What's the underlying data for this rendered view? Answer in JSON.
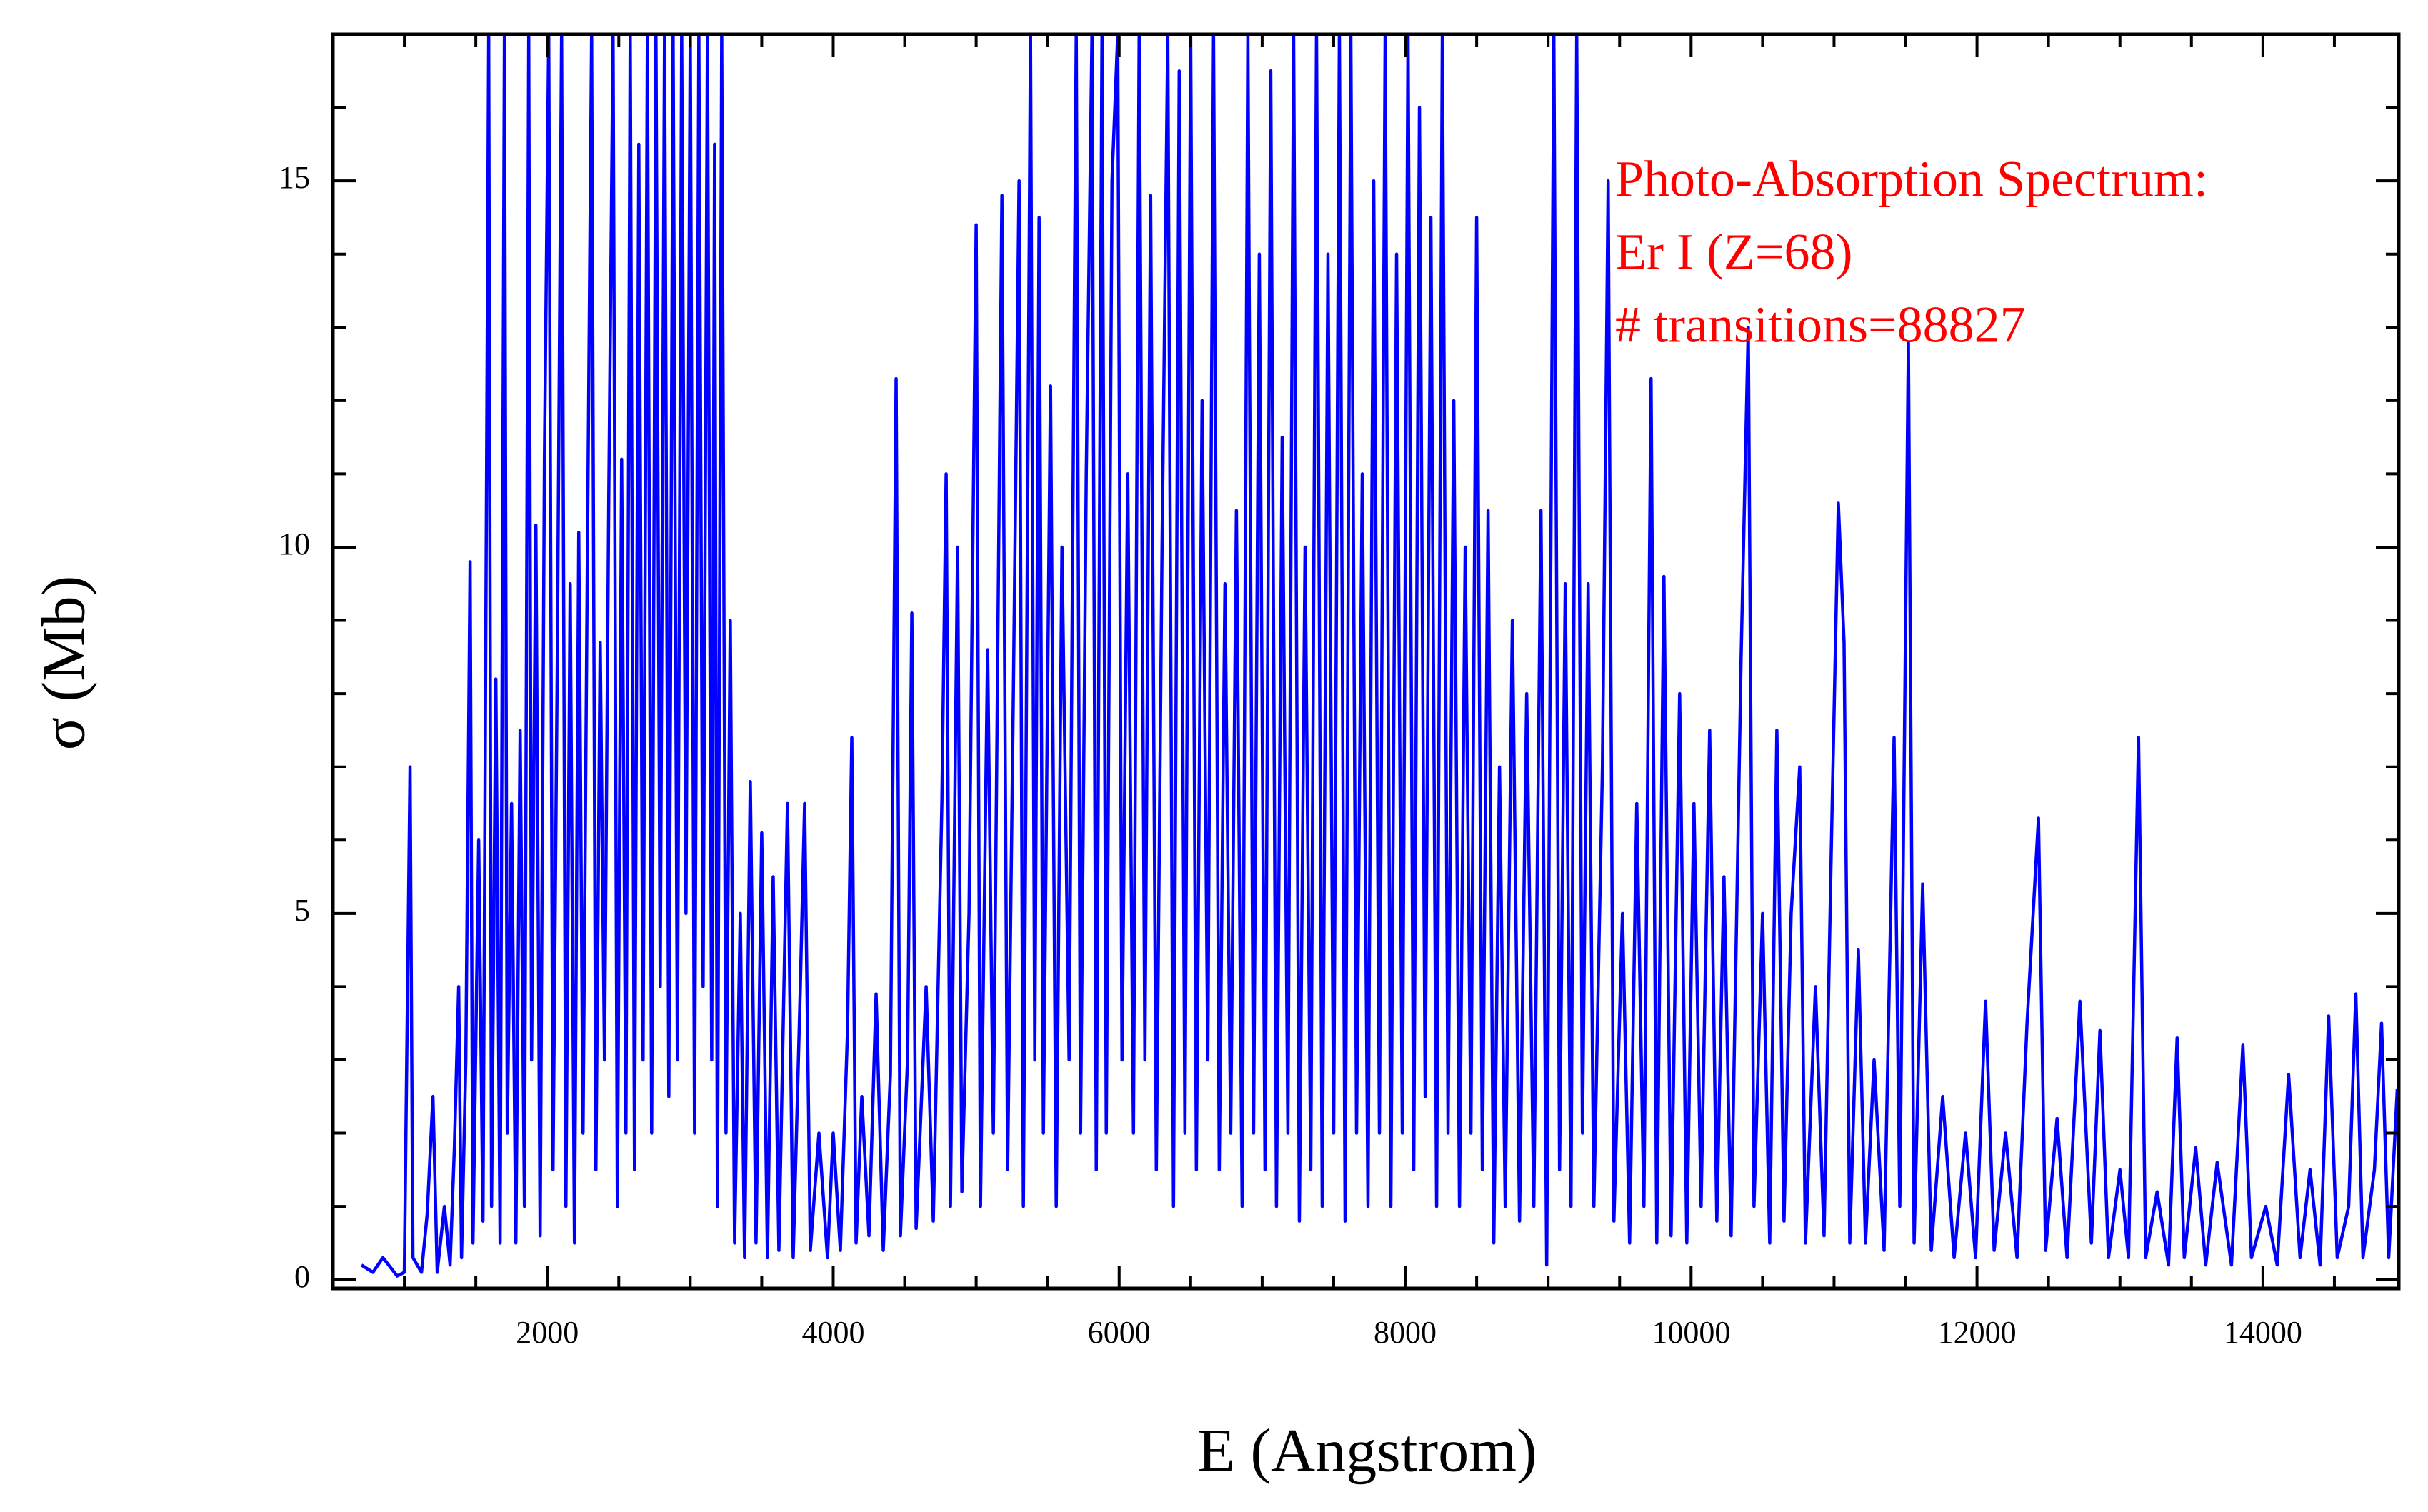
{
  "chart_data": {
    "type": "line",
    "xlabel": "E (Angstrom)",
    "ylabel": "σ (Mb)",
    "annotations": [
      "Photo-Absorption Spectrum:",
      "Er I (Z=68)",
      "# transitions=88827"
    ],
    "annotation_color": "#ff0000",
    "xlim": [
      500,
      14950
    ],
    "ylim": [
      -0.12,
      17
    ],
    "xticks": [
      2000,
      4000,
      6000,
      8000,
      10000,
      12000,
      14000
    ],
    "yticks": [
      0,
      5,
      10,
      15
    ],
    "xminorticks": [
      1000,
      1500,
      2500,
      3000,
      3500,
      4500,
      5000,
      5500,
      6500,
      7000,
      7500,
      8500,
      9000,
      9500,
      10500,
      11000,
      11500,
      12500,
      13000,
      13500,
      14500
    ],
    "yminorticks": [
      1,
      2,
      3,
      4,
      6,
      7,
      8,
      9,
      11,
      12,
      13,
      14,
      16
    ],
    "x": [
      700,
      780,
      850,
      950,
      1000,
      1040,
      1060,
      1120,
      1160,
      1200,
      1230,
      1280,
      1320,
      1350,
      1380,
      1400,
      1430,
      1460,
      1480,
      1520,
      1550,
      1590,
      1610,
      1640,
      1670,
      1700,
      1720,
      1750,
      1780,
      1810,
      1840,
      1870,
      1890,
      1920,
      1950,
      1980,
      2010,
      2040,
      2070,
      2100,
      2130,
      2160,
      2190,
      2220,
      2250,
      2280,
      2310,
      2340,
      2370,
      2400,
      2430,
      2460,
      2490,
      2520,
      2550,
      2580,
      2610,
      2640,
      2670,
      2700,
      2730,
      2760,
      2790,
      2820,
      2850,
      2880,
      2910,
      2940,
      2970,
      3000,
      3030,
      3060,
      3090,
      3120,
      3150,
      3170,
      3190,
      3220,
      3250,
      3280,
      3310,
      3350,
      3380,
      3420,
      3460,
      3500,
      3540,
      3580,
      3620,
      3680,
      3720,
      3770,
      3800,
      3840,
      3900,
      3960,
      4000,
      4050,
      4100,
      4130,
      4160,
      4200,
      4250,
      4300,
      4350,
      4400,
      4440,
      4470,
      4520,
      4550,
      4580,
      4650,
      4700,
      4760,
      4790,
      4820,
      4870,
      4900,
      4950,
      5000,
      5030,
      5080,
      5120,
      5180,
      5220,
      5260,
      5300,
      5330,
      5380,
      5410,
      5440,
      5470,
      5520,
      5560,
      5600,
      5650,
      5700,
      5730,
      5770,
      5810,
      5840,
      5880,
      5910,
      5950,
      5990,
      6020,
      6060,
      6100,
      6140,
      6180,
      6220,
      6260,
      6300,
      6340,
      6380,
      6420,
      6460,
      6500,
      6540,
      6580,
      6620,
      6660,
      6700,
      6740,
      6780,
      6820,
      6860,
      6900,
      6940,
      6980,
      7020,
      7060,
      7100,
      7140,
      7180,
      7220,
      7260,
      7300,
      7340,
      7380,
      7420,
      7460,
      7500,
      7540,
      7580,
      7620,
      7660,
      7700,
      7740,
      7780,
      7820,
      7860,
      7900,
      7940,
      7980,
      8020,
      8060,
      8100,
      8140,
      8180,
      8220,
      8260,
      8300,
      8340,
      8380,
      8420,
      8460,
      8500,
      8540,
      8580,
      8620,
      8660,
      8700,
      8750,
      8800,
      8850,
      8900,
      8950,
      8990,
      9040,
      9080,
      9120,
      9160,
      9200,
      9240,
      9280,
      9320,
      9380,
      9420,
      9460,
      9520,
      9570,
      9620,
      9670,
      9720,
      9760,
      9810,
      9860,
      9920,
      9970,
      10020,
      10070,
      10130,
      10180,
      10230,
      10280,
      10350,
      10400,
      10440,
      10500,
      10550,
      10600,
      10650,
      10700,
      10760,
      10800,
      10870,
      10930,
      10980,
      11030,
      11070,
      11110,
      11170,
      11220,
      11280,
      11350,
      11420,
      11460,
      11520,
      11560,
      11620,
      11680,
      11760,
      11840,
      11920,
      11990,
      12060,
      12120,
      12200,
      12280,
      12350,
      12430,
      12480,
      12560,
      12630,
      12720,
      12800,
      12860,
      12920,
      13000,
      13060,
      13130,
      13180,
      13260,
      13340,
      13400,
      13450,
      13530,
      13600,
      13680,
      13780,
      13860,
      13920,
      14020,
      14100,
      14180,
      14260,
      14330,
      14400,
      14460,
      14520,
      14600,
      14650,
      14700,
      14780,
      14830,
      14880,
      14940
    ],
    "series": [
      {
        "color": "#0000ff",
        "values": [
          0.2,
          0.1,
          0.3,
          0.05,
          0.1,
          7.0,
          0.3,
          0.1,
          0.9,
          2.5,
          0.1,
          1.0,
          0.2,
          1.8,
          4.0,
          0.3,
          3.0,
          9.8,
          0.5,
          6.0,
          0.8,
          17,
          1.0,
          8.2,
          0.5,
          17,
          2.0,
          6.5,
          0.5,
          7.5,
          1.0,
          17,
          3.0,
          10.3,
          0.6,
          11.2,
          17,
          1.5,
          8.5,
          17,
          1.0,
          9.5,
          0.5,
          10.2,
          2.0,
          9.8,
          17,
          1.5,
          8.7,
          3.0,
          10.7,
          17,
          1.0,
          11.2,
          2.0,
          17,
          1.5,
          15.5,
          3.0,
          17,
          2.0,
          17,
          4.0,
          17,
          2.5,
          17,
          3.0,
          17,
          5.0,
          17,
          2.0,
          17,
          4.0,
          17,
          3.0,
          15.5,
          1.0,
          17,
          2.0,
          9.0,
          0.5,
          5.0,
          0.3,
          6.8,
          0.5,
          6.1,
          0.3,
          5.5,
          0.4,
          6.5,
          0.3,
          4.0,
          6.5,
          0.4,
          2.0,
          0.3,
          2.0,
          0.4,
          3.4,
          7.4,
          0.5,
          2.5,
          0.6,
          3.9,
          0.4,
          2.8,
          12.3,
          0.6,
          3.0,
          9.1,
          0.7,
          4.0,
          0.8,
          6.5,
          11.0,
          1.0,
          10.0,
          1.2,
          5.0,
          14.4,
          1.0,
          8.6,
          2.0,
          14.8,
          1.5,
          8.0,
          15.0,
          1.0,
          17,
          3.0,
          14.5,
          2.0,
          12.2,
          1.0,
          10.0,
          3.0,
          17,
          2.0,
          11.0,
          17,
          1.5,
          17,
          2.0,
          15.0,
          17,
          3.0,
          11.0,
          2.0,
          17,
          3.0,
          14.8,
          1.5,
          10.0,
          17,
          1.0,
          16.5,
          2.0,
          17,
          1.5,
          12.0,
          3.0,
          17,
          1.5,
          9.5,
          2.0,
          10.5,
          1.0,
          17,
          2.0,
          14.0,
          1.5,
          16.5,
          1.0,
          11.5,
          2.0,
          17,
          0.8,
          10.0,
          1.5,
          17,
          1.0,
          14.0,
          2.0,
          17,
          0.8,
          17,
          2.0,
          11.0,
          1.0,
          15.0,
          2.0,
          17,
          1.0,
          14.0,
          2.0,
          17,
          1.5,
          16.0,
          2.5,
          14.5,
          1.0,
          17,
          2.0,
          12.0,
          1.0,
          10.0,
          2.0,
          14.5,
          1.5,
          10.5,
          0.5,
          7.0,
          1.0,
          9.0,
          0.8,
          8.0,
          1.0,
          10.5,
          0.2,
          17,
          1.5,
          9.5,
          1.0,
          17,
          2.0,
          9.5,
          1.0,
          7.0,
          15.0,
          0.8,
          5.0,
          0.5,
          6.5,
          1.0,
          12.3,
          0.5,
          9.6,
          0.6,
          8.0,
          0.5,
          6.5,
          1.0,
          7.5,
          0.8,
          5.5,
          0.6,
          8.5,
          13.0,
          1.0,
          5.0,
          0.5,
          7.5,
          0.8,
          5.0,
          7.0,
          0.5,
          4.0,
          0.6,
          5.8,
          10.6,
          8.7,
          0.5,
          4.5,
          0.5,
          3.0,
          0.4,
          7.4,
          1.0,
          12.8,
          0.5,
          5.4,
          0.4,
          2.5,
          0.3,
          2.0,
          0.3,
          3.8,
          0.4,
          2.0,
          0.3,
          3.5,
          6.3,
          0.4,
          2.2,
          0.3,
          3.8,
          0.5,
          3.4,
          0.3,
          1.5,
          0.3,
          7.4,
          0.3,
          1.2,
          0.2,
          3.3,
          0.3,
          1.8,
          0.2,
          1.6,
          0.2,
          3.2,
          0.3,
          1.0,
          0.2,
          2.8,
          0.3,
          1.5,
          0.2,
          3.6,
          0.3,
          1.0,
          3.9,
          0.3,
          1.5,
          3.5,
          0.3,
          2.6
        ]
      }
    ]
  }
}
